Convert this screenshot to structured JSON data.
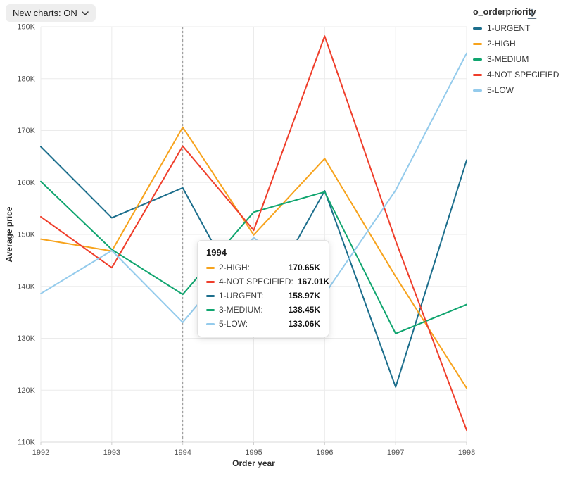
{
  "toolbar": {
    "new_charts_label": "New charts: ON"
  },
  "icons": {
    "chevron-down-icon": "⌄",
    "download-icon": "↓"
  },
  "legend": {
    "title": "o_orderpriority",
    "items": [
      {
        "label": "1-URGENT",
        "color": "#1c6e8c"
      },
      {
        "label": "2-HIGH",
        "color": "#f7a31c"
      },
      {
        "label": "3-MEDIUM",
        "color": "#10a56f"
      },
      {
        "label": "4-NOT SPECIFIED",
        "color": "#ef3e2b"
      },
      {
        "label": "5-LOW",
        "color": "#94cbec"
      }
    ]
  },
  "chart_data": {
    "type": "line",
    "x": [
      1992,
      1993,
      1994,
      1995,
      1996,
      1997,
      1998
    ],
    "x_ticks": [
      "1992",
      "1993",
      "1994",
      "1995",
      "1996",
      "1997",
      "1998"
    ],
    "y_tick_values": [
      110,
      120,
      130,
      140,
      150,
      160,
      170,
      180,
      190
    ],
    "y_ticks": [
      "110K",
      "120K",
      "130K",
      "140K",
      "150K",
      "160K",
      "170K",
      "180K",
      "190K"
    ],
    "ylim": [
      110,
      190
    ],
    "y_unit": "K",
    "xlabel": "Order year",
    "ylabel": "Average price",
    "grid": true,
    "legend_position": "right",
    "reference_line_x": 1994,
    "series": [
      {
        "name": "1-URGENT",
        "color": "#1c6e8c",
        "values": [
          166.9,
          153.2,
          158.97,
          133.9,
          158.4,
          120.6,
          164.3
        ]
      },
      {
        "name": "2-HIGH",
        "color": "#f7a31c",
        "values": [
          149.1,
          146.8,
          170.65,
          149.9,
          164.6,
          141.9,
          120.4
        ]
      },
      {
        "name": "3-MEDIUM",
        "color": "#10a56f",
        "values": [
          160.2,
          147.1,
          138.45,
          154.3,
          158.2,
          130.9,
          136.5
        ]
      },
      {
        "name": "4-NOT SPECIFIED",
        "color": "#ef3e2b",
        "values": [
          153.4,
          143.6,
          167.01,
          150.8,
          188.2,
          148.8,
          112.3
        ]
      },
      {
        "name": "5-LOW",
        "color": "#94cbec",
        "values": [
          138.6,
          146.9,
          133.06,
          149.4,
          138.5,
          158.5,
          184.9
        ]
      }
    ]
  },
  "tooltip": {
    "title": "1994",
    "rows": [
      {
        "label": "2-HIGH:",
        "value": "170.65K",
        "color": "#f7a31c"
      },
      {
        "label": "4-NOT SPECIFIED:",
        "value": "167.01K",
        "color": "#ef3e2b"
      },
      {
        "label": "1-URGENT:",
        "value": "158.97K",
        "color": "#1c6e8c"
      },
      {
        "label": "3-MEDIUM:",
        "value": "138.45K",
        "color": "#10a56f"
      },
      {
        "label": "5-LOW:",
        "value": "133.06K",
        "color": "#94cbec"
      }
    ]
  }
}
